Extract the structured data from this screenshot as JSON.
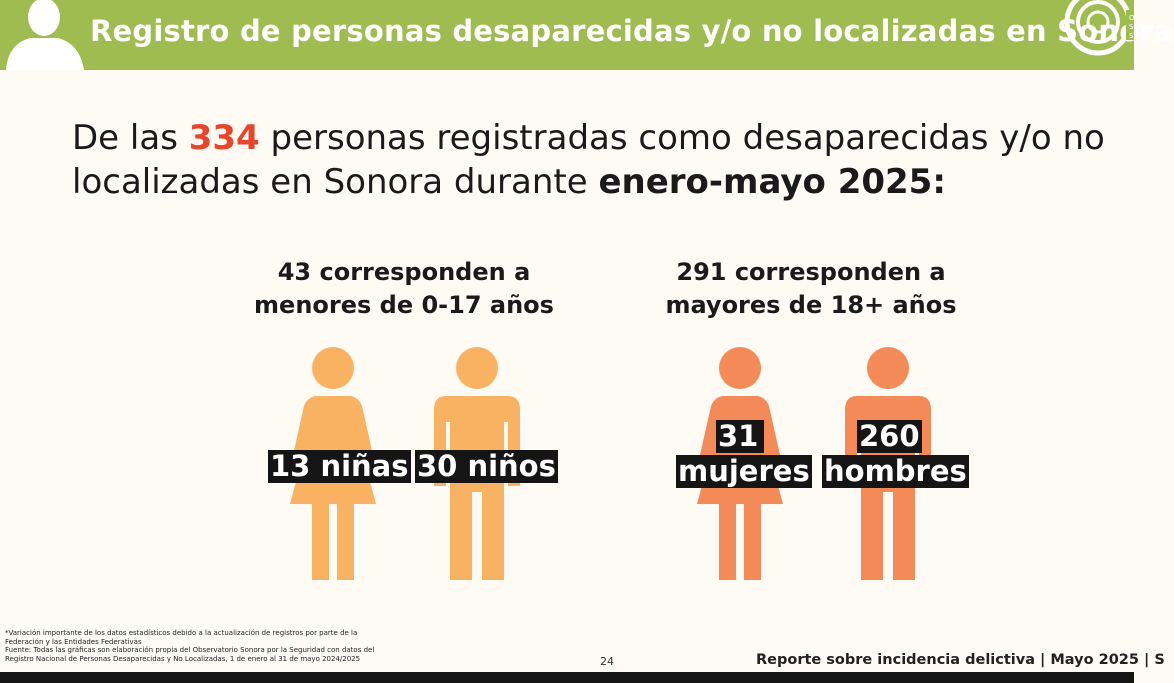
{
  "header": {
    "title": "Registro de personas desaparecidas y/o no localizadas en Sonora",
    "bg_color": "#9ebc4f",
    "left_icon": "person-silhouette-icon",
    "right_logo": "observatorio-logo"
  },
  "headline": {
    "part1": "De las ",
    "number": "334",
    "part2": " personas registradas como desaparecidas y/o no localizadas en Sonora durante ",
    "period": "enero-mayo 2025:",
    "number_color": "#e8462a"
  },
  "groups": [
    {
      "line1": "43 corresponden a",
      "line2": "menores de 0-17 años",
      "color": "#f8b261",
      "figures": [
        {
          "icon": "female-figure-icon",
          "label": "13 niñas"
        },
        {
          "icon": "male-figure-icon",
          "label": "30 niños"
        }
      ]
    },
    {
      "line1": "291 corresponden a",
      "line2": "mayores de 18+ años",
      "color": "#f48a58",
      "figures": [
        {
          "icon": "female-figure-icon",
          "label_line1": "31",
          "label_line2": "mujeres"
        },
        {
          "icon": "male-figure-icon",
          "label_line1": "260",
          "label_line2": "hombres"
        }
      ]
    }
  ],
  "footer": {
    "note_line1": "*Variación importante de los datos estadísticos debido a  la actualización de registros por parte de la",
    "note_line2": "Federación y las Entidades Federativas",
    "note_line3": "Fuente: Todas las gráficas son elaboración propia del Observatorio Sonora por la Seguridad con datos del",
    "note_line4": "Registro Nacional de Personas Desaparecidas y No Localizadas, 1 de enero al 31 de mayo 2024/2025",
    "page_number": "24",
    "report_title": "Reporte sobre incidencia delictiva | Mayo 2025 | S"
  }
}
